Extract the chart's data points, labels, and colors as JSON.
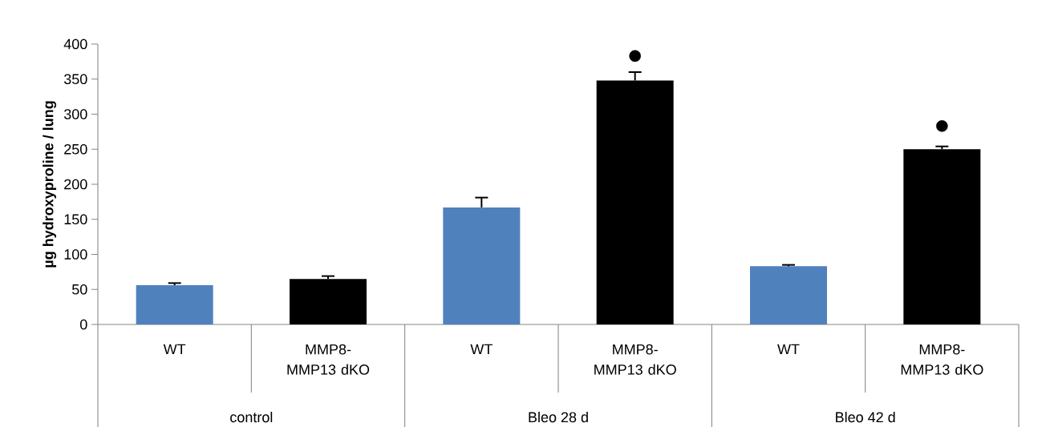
{
  "chart_data": {
    "type": "bar",
    "ylabel": "µg hydroxyproline / lung",
    "categories": [
      "WT",
      "MMP8-MMP13 dKO",
      "WT",
      "MMP8-MMP13 dKO",
      "WT",
      "MMP8-MMP13 dKO"
    ],
    "values": [
      56,
      65,
      167,
      348,
      83,
      250
    ],
    "colors": [
      "#4f81bd",
      "#000000",
      "#4f81bd",
      "#000000",
      "#4f81bd",
      "#000000"
    ],
    "errors": [
      [
        56,
        59
      ],
      [
        65,
        69
      ],
      [
        167,
        181
      ],
      [
        348,
        360
      ],
      [
        83,
        85
      ],
      [
        250,
        254
      ]
    ],
    "ylim": [
      0,
      400
    ],
    "yticks": [
      0,
      50,
      100,
      150,
      200,
      250,
      300,
      350,
      400
    ],
    "grid": false,
    "series": [
      {
        "type": "scatter",
        "color": "#000000",
        "values": [
          null,
          null,
          null,
          383,
          null,
          283
        ]
      }
    ],
    "annotations": [
      "control",
      "Bleo 28 d",
      "Bleo 42 d"
    ]
  }
}
